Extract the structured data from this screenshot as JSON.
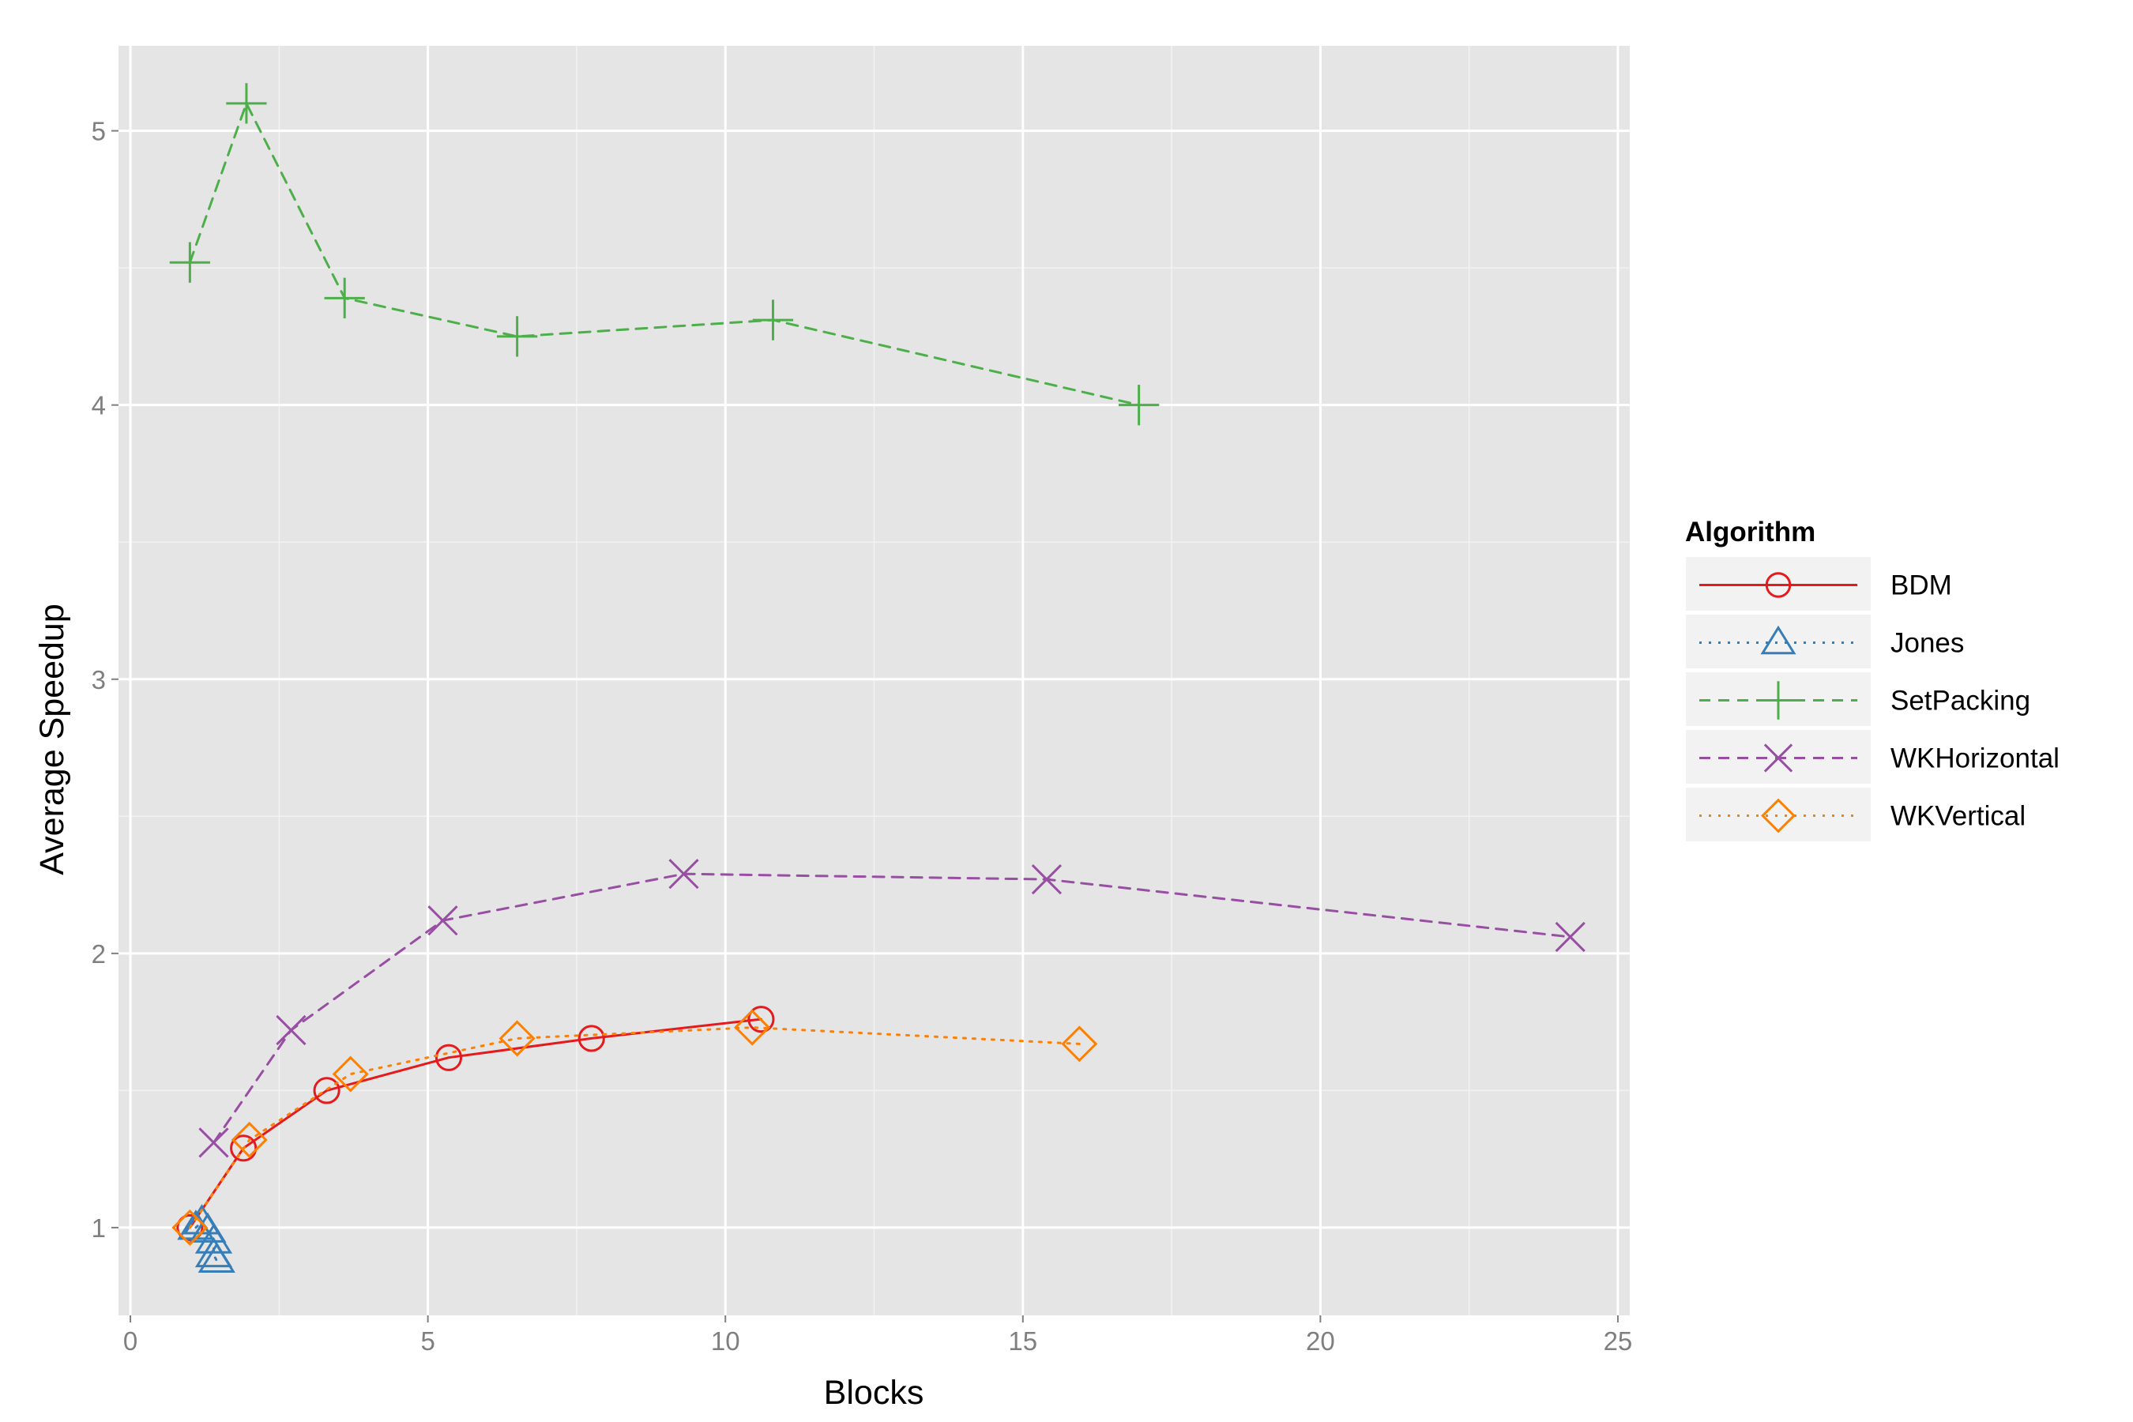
{
  "chart_data": {
    "type": "line",
    "title": "",
    "xlabel": "Blocks",
    "ylabel": "Average Speedup",
    "xlim": [
      -0.2,
      25.2
    ],
    "ylim": [
      0.68,
      5.31
    ],
    "x_ticks": [
      0,
      5,
      10,
      15,
      20,
      25
    ],
    "y_ticks": [
      1,
      2,
      3,
      4,
      5
    ],
    "x_tick_labels": [
      "0",
      "5",
      "10",
      "15",
      "20",
      "25"
    ],
    "y_tick_labels": [
      "1",
      "2",
      "3",
      "4",
      "5"
    ],
    "grid": true,
    "background": "#e5e5e5",
    "legend": {
      "title": "Algorithm",
      "position": "right"
    },
    "series": [
      {
        "name": "BDM",
        "color": "#e41a1c",
        "marker": "circle",
        "line_style": "solid",
        "x": [
          1.0,
          1.9,
          3.3,
          5.35,
          7.75,
          10.6
        ],
        "y": [
          1.0,
          1.29,
          1.5,
          1.62,
          1.69,
          1.76
        ]
      },
      {
        "name": "Jones",
        "color": "#377eb8",
        "marker": "triangle",
        "line_style": "dotted",
        "x": [
          1.1,
          1.2,
          1.3,
          1.4,
          1.4,
          1.45
        ],
        "y": [
          1.0,
          1.02,
          0.99,
          0.95,
          0.9,
          0.88
        ]
      },
      {
        "name": "SetPacking",
        "color": "#4daf4a",
        "marker": "plus",
        "line_style": "dashed",
        "x": [
          1.0,
          1.95,
          3.6,
          6.5,
          10.8,
          16.95
        ],
        "y": [
          4.52,
          5.1,
          4.39,
          4.25,
          4.31,
          4.0
        ]
      },
      {
        "name": "WKHorizontal",
        "color": "#984ea3",
        "marker": "cross",
        "line_style": "dashed",
        "x": [
          1.4,
          2.7,
          5.25,
          9.3,
          15.4,
          24.2
        ],
        "y": [
          1.31,
          1.72,
          2.12,
          2.29,
          2.27,
          2.06
        ]
      },
      {
        "name": "WKVertical",
        "color": "#ff7f00",
        "marker": "diamond",
        "line_style": "dotted",
        "x": [
          1.0,
          2.0,
          3.7,
          6.5,
          10.45,
          15.95
        ],
        "y": [
          1.0,
          1.32,
          1.56,
          1.69,
          1.73,
          1.67
        ]
      }
    ]
  }
}
